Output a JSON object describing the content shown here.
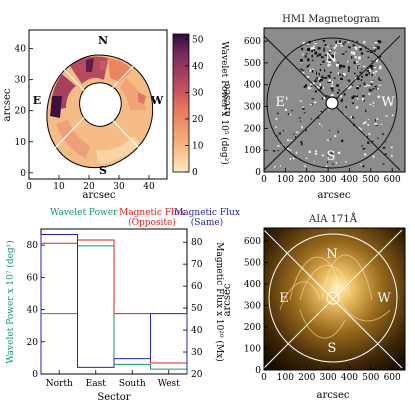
{
  "chart_data": [
    {
      "type": "heatmap",
      "panel": "top-left",
      "xlabel": "arcsec",
      "ylabel": "arcsec",
      "x_ticks": [
        0,
        10,
        20,
        30,
        40
      ],
      "y_ticks": [
        0,
        10,
        20,
        30,
        40
      ],
      "xlim": [
        0,
        46
      ],
      "ylim": [
        -2,
        46
      ],
      "direction_labels": {
        "north": "N",
        "east": "E",
        "south": "S",
        "west": "W"
      },
      "colorbar": {
        "label": "Wavelet Power x 10⁵ (deg²)",
        "ticks": [
          0,
          10,
          20,
          30,
          40,
          50
        ],
        "range": [
          0,
          52
        ],
        "colors": [
          "#fde9c0",
          "#f7b47d",
          "#e9775c",
          "#b8475f",
          "#7a2a5e",
          "#2b0f3a"
        ]
      },
      "sectors": [
        "North",
        "East",
        "South",
        "West"
      ]
    },
    {
      "type": "heatmap",
      "panel": "top-right",
      "title": "HMI Magnetogram",
      "xlabel": "arcsec",
      "ylabel": "arcsec",
      "x_ticks": [
        0,
        100,
        200,
        300,
        400,
        500,
        600
      ],
      "y_ticks": [
        0,
        100,
        200,
        300,
        400,
        500,
        600
      ],
      "xlim": [
        0,
        660
      ],
      "ylim": [
        0,
        660
      ],
      "direction_labels": {
        "north": "N",
        "east": "E'",
        "south": "S",
        "west": "W"
      }
    },
    {
      "type": "bar",
      "panel": "bottom-left",
      "xlabel": "Sector",
      "categories": [
        "North",
        "East",
        "South",
        "West"
      ],
      "ylabel_left": "Wavelet Power x 10⁷ (deg²)",
      "ylabel_right": "Magnetic Flux x 10²⁰ (Mx)",
      "ylim_left": [
        0,
        90
      ],
      "ylim_right": [
        20,
        86
      ],
      "y_ticks_left": [
        0,
        20,
        40,
        60,
        80
      ],
      "y_ticks_right": [
        20,
        30,
        40,
        50,
        60,
        70,
        80
      ],
      "legend": [
        {
          "label": "Wavelet Power",
          "color": "#119966"
        },
        {
          "label": "Magnetic Flux (Opposite)",
          "line1": "Magnetic Flux",
          "line2": "(Opposite)",
          "color": "#dd2222"
        },
        {
          "label": "Magnetic Flux (Same)",
          "line1": "Magnetic Flux",
          "line2": "(Same)",
          "color": "#2222bb"
        }
      ],
      "series": [
        {
          "name": "Wavelet Power",
          "axis": "left",
          "color": "#119966",
          "values": [
            37.5,
            79.5,
            6,
            3
          ]
        },
        {
          "name": "Magnetic Flux (Opposite)",
          "axis": "right",
          "color": "#dd2222",
          "values": [
            79.5,
            81,
            47.5,
            25
          ]
        },
        {
          "name": "Magnetic Flux (Same)",
          "axis": "right",
          "color": "#2222bb",
          "values": [
            83.5,
            23,
            27,
            47.5
          ]
        }
      ]
    },
    {
      "type": "heatmap",
      "panel": "bottom-right",
      "title": "AIA 171Å",
      "xlabel": "arcsec",
      "ylabel": "arcsec",
      "x_ticks": [
        0,
        100,
        200,
        300,
        400,
        500,
        600
      ],
      "y_ticks": [
        0,
        100,
        200,
        300,
        400,
        500,
        600
      ],
      "xlim": [
        0,
        660
      ],
      "ylim": [
        0,
        660
      ],
      "direction_labels": {
        "north": "N",
        "east": "E",
        "south": "S",
        "west": "W"
      }
    }
  ]
}
